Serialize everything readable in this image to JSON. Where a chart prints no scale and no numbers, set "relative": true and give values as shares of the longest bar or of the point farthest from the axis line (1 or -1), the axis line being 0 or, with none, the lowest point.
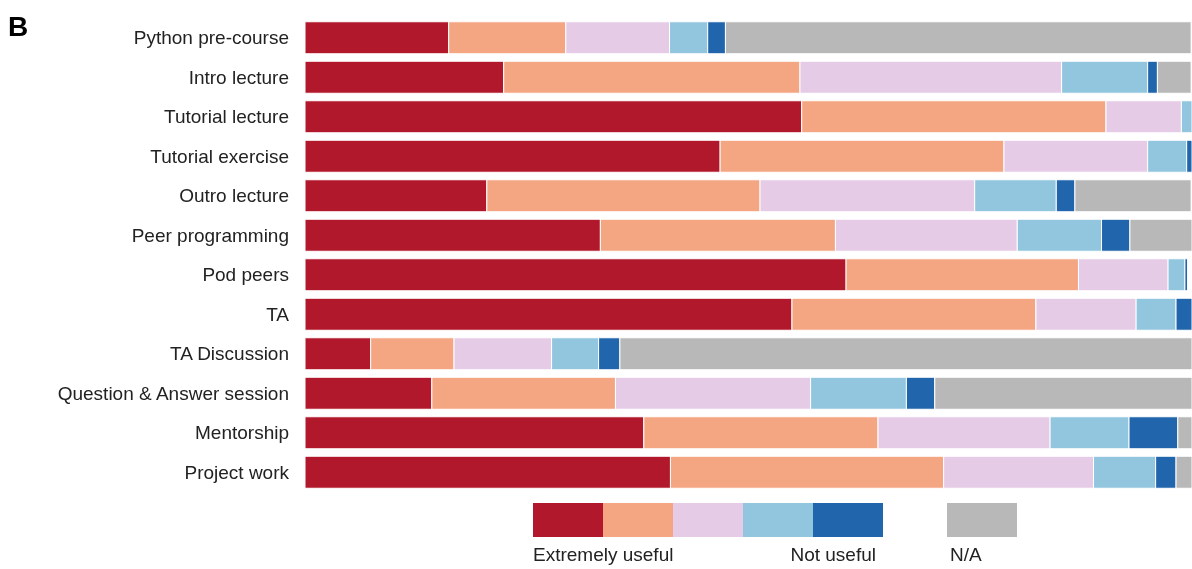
{
  "chart_data": {
    "type": "bar",
    "orientation": "horizontal",
    "stacked": true,
    "relative": true,
    "title": "B",
    "tick_labels": "y",
    "legend": "bottom",
    "categories": [
      "Python pre-course",
      "Intro lecture",
      "Tutorial lecture",
      "Tutorial exercise",
      "Outro lecture",
      "Peer programming",
      "Pod peers",
      "TA",
      "TA Discussion",
      "Question & Answer session",
      "Mentorship",
      "Project work"
    ],
    "series": [
      {
        "name": "Extremely useful",
        "color": "#b2182b",
        "values": [
          0.162,
          0.224,
          0.56,
          0.468,
          0.205,
          0.333,
          0.61,
          0.549,
          0.074,
          0.143,
          0.382,
          0.412
        ]
      },
      {
        "color": "#f4a582",
        "values": [
          0.132,
          0.334,
          0.343,
          0.32,
          0.308,
          0.265,
          0.262,
          0.275,
          0.094,
          0.207,
          0.264,
          0.308
        ]
      },
      {
        "color": "#e6cbe6",
        "values": [
          0.117,
          0.295,
          0.085,
          0.162,
          0.242,
          0.205,
          0.101,
          0.113,
          0.11,
          0.22,
          0.194,
          0.169
        ]
      },
      {
        "color": "#92c5de",
        "values": [
          0.043,
          0.097,
          0.012,
          0.044,
          0.092,
          0.095,
          0.019,
          0.045,
          0.053,
          0.108,
          0.089,
          0.07
        ]
      },
      {
        "name": "Not useful",
        "color": "#2166ac",
        "values": [
          0.02,
          0.011,
          null,
          0.006,
          0.021,
          0.032,
          0.003,
          0.018,
          0.024,
          0.032,
          0.055,
          0.023
        ]
      },
      {
        "name": "N/A",
        "color": "#b8b8b8",
        "values": [
          0.525,
          0.038,
          null,
          null,
          0.131,
          0.07,
          null,
          null,
          0.645,
          0.29,
          0.016,
          0.018
        ]
      }
    ]
  }
}
